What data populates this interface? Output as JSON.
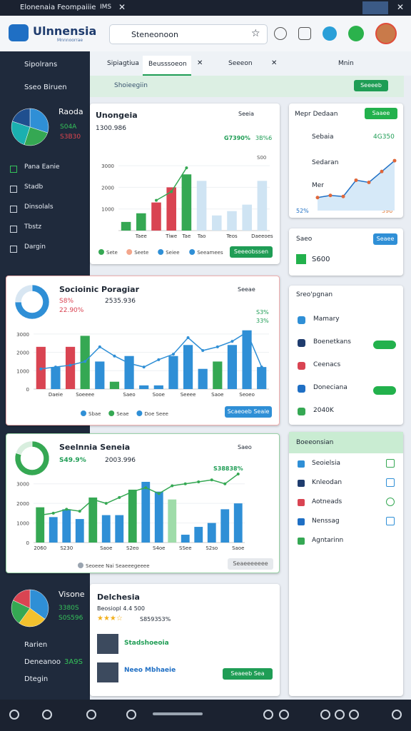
{
  "window": {
    "title": "Elonenaia Feompaiiie",
    "tab": "IMS"
  },
  "browser": {
    "brand": "Ulnnensia",
    "brand_sub": "Mnnnoorrae",
    "address": "Steneonoon"
  },
  "sidebar": {
    "header": "Sipolrans",
    "top_item": "Sseo Biruen",
    "items": [
      "Pana Eanie",
      "Stadb",
      "Dinsolals",
      "Tbstz",
      "Dargin"
    ],
    "summary": {
      "title": "Raoda",
      "lines": [
        "S04A",
        "S3B30"
      ],
      "pie": [
        30,
        25,
        25,
        20
      ]
    },
    "bottom": {
      "title": "Visone",
      "lines": [
        "3380S",
        "S0S596"
      ],
      "pie": [
        35,
        25,
        22,
        18
      ],
      "items": [
        "Rarien",
        "Deneanoo",
        "Dtegin"
      ],
      "badge": "3A9S"
    }
  },
  "tabs": [
    "Sipiagtiua",
    "Beusssoeon",
    "Seeeon"
  ],
  "tab_right": "Mnin",
  "toolbar": {
    "label": "Shoieegiin",
    "button": "Seeeeb"
  },
  "cards": [
    {
      "title": "Unongeia",
      "subtitle": "1300.986",
      "menu": "Seeia",
      "badges": [
        "G7390%",
        "3B%6"
      ],
      "axis_note": "S00",
      "legend": [
        "Sete",
        "Seete",
        "Seiee",
        "Seeamees"
      ],
      "button": "Seeeobssen",
      "chart": {
        "type": "bar",
        "ylim": [
          0,
          3500
        ],
        "yticks": [
          1000,
          2000,
          3000
        ],
        "categories": [
          null,
          "Taee",
          null,
          "Tiwe",
          "Tae",
          "Tao",
          null,
          "Teos",
          null,
          "Daeeoes"
        ],
        "values": [
          400,
          800,
          1300,
          2000,
          2600,
          2300,
          700,
          900,
          1200,
          2300
        ],
        "colors": [
          "#35a853",
          "#35a853",
          "#d94452",
          "#d94452",
          "#35a853",
          "#cfe4f3",
          "#cfe4f3",
          "#cfe4f3",
          "#cfe4f3",
          "#cfe4f3"
        ],
        "line": {
          "color": "#35a853",
          "values": [
            null,
            null,
            1400,
            1800,
            2900,
            null,
            null,
            null,
            null,
            null
          ]
        }
      }
    },
    {
      "title": "Socioinic Poragiar",
      "subtitle": "2535.936",
      "menu": "Seeae",
      "stats": [
        "S8%",
        "22.90%"
      ],
      "badges": [
        "S3%",
        "33%"
      ],
      "donut": [
        75,
        25
      ],
      "legend": [
        "Sbae",
        "Seae",
        "Doe Seee"
      ],
      "button": "Scaeoeb Seaie",
      "chart": {
        "type": "bar",
        "ylim": [
          0,
          3500
        ],
        "yticks": [
          0,
          1000,
          2000,
          3000
        ],
        "categories": [
          null,
          "Daeie",
          null,
          "Soeeee",
          null,
          null,
          "Saeo",
          null,
          "Sooe",
          null,
          "Seeee",
          null,
          "Saoe",
          null,
          "Seoeo",
          null
        ],
        "values": [
          2300,
          1200,
          2300,
          2900,
          1500,
          400,
          1800,
          200,
          200,
          1800,
          2400,
          1100,
          1500,
          2400,
          3200,
          1200
        ],
        "colors": [
          "#d94452",
          "#2f8fd6",
          "#d94452",
          "#35a853",
          "#2f8fd6",
          "#35a853",
          "#2f8fd6",
          "#2f8fd6",
          "#2f8fd6",
          "#2f8fd6",
          "#2f8fd6",
          "#2f8fd6",
          "#35a853",
          "#2f8fd6",
          "#2f8fd6",
          "#2f8fd6"
        ],
        "line": {
          "color": "#2f8fd6",
          "values": [
            1100,
            1200,
            1300,
            1500,
            2300,
            1800,
            1400,
            1200,
            1600,
            1900,
            2800,
            2100,
            2300,
            2600,
            3100,
            1200
          ]
        }
      }
    },
    {
      "title": "Seelnnia Seneia",
      "subtitle": "2003.996",
      "menu": "Saeo",
      "stats": [
        "S49.9%"
      ],
      "line_label": "S38838%",
      "donut": [
        80,
        20
      ],
      "legend": [
        "Seoeee Nai Seaeeegeeee"
      ],
      "button": "Seaeeeeeee",
      "chart": {
        "type": "bar",
        "ylim": [
          0,
          3500
        ],
        "yticks": [
          0,
          1000,
          2000,
          3000
        ],
        "categories": [
          "2060",
          null,
          "S230",
          null,
          null,
          "Saoe",
          null,
          "S2eo",
          null,
          "S4oe",
          null,
          "SSee",
          null,
          "S2so",
          null,
          "Saoe"
        ],
        "values": [
          1800,
          1300,
          1700,
          1200,
          2300,
          1400,
          1400,
          2700,
          3100,
          2600,
          2200,
          400,
          800,
          1000,
          1700,
          2000
        ],
        "colors": [
          "#35a853",
          "#2f8fd6",
          "#2f8fd6",
          "#2f8fd6",
          "#35a853",
          "#2f8fd6",
          "#2f8fd6",
          "#35a853",
          "#2f8fd6",
          "#2f8fd6",
          "#9fdca9",
          "#2f8fd6",
          "#2f8fd6",
          "#2f8fd6",
          "#2f8fd6",
          "#2f8fd6"
        ],
        "line": {
          "color": "#35a853",
          "values": [
            1400,
            1500,
            1700,
            1600,
            2200,
            2000,
            2300,
            2600,
            2800,
            2500,
            2900,
            3000,
            3100,
            3200,
            3000,
            3500
          ]
        }
      }
    },
    {
      "title": "Delchesia",
      "subtitle": "Beosiopl 4.4 500",
      "rating": "S859353%",
      "people": [
        "Stadshoeoia",
        "Neeo Mbhaeie"
      ],
      "button": "Seaeeb Sea"
    }
  ],
  "right": {
    "card1": {
      "title": "Mepr Dedaan",
      "button": "Saaee",
      "items": [
        "Sebaia",
        "Sedaran",
        "Mer"
      ],
      "value": "4G350",
      "labels": [
        "52%",
        "396"
      ],
      "chart": {
        "type": "line",
        "ylim": [
          0,
          2500
        ],
        "values": [
          600,
          700,
          650,
          1400,
          1300,
          1800,
          2300
        ]
      }
    },
    "card2": {
      "title": "Saeo",
      "button": "Seaee",
      "value": "S600"
    },
    "card3": {
      "title": "Sreo'pgnan",
      "items": [
        "Mamary",
        "Boenetkans",
        "Ceenacs",
        "Doneciana",
        "2040K"
      ]
    },
    "card4": {
      "title": "Boeeonsian",
      "items": [
        "Seoielsia",
        "Knleodan",
        "Aotneads",
        "Nenssag",
        "Agntarinn"
      ]
    }
  }
}
